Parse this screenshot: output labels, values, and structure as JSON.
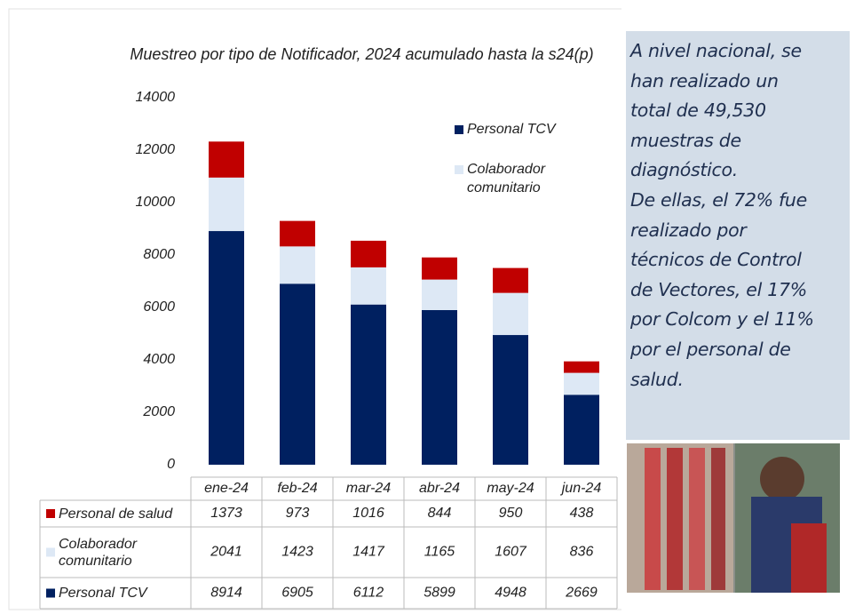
{
  "chart_data": {
    "type": "stacked-bar",
    "title": "Muestreo por tipo de Notificador, 2024 acumulado hasta la s24(p)",
    "categories": [
      "ene-24",
      "feb-24",
      "mar-24",
      "abr-24",
      "may-24",
      "jun-24"
    ],
    "series": [
      {
        "name": "Personal TCV",
        "color": "#002060",
        "values": [
          8914,
          6905,
          6112,
          5899,
          4948,
          2669
        ]
      },
      {
        "name": "Colaborador comunitario",
        "color": "#dde8f5",
        "values": [
          2041,
          1423,
          1417,
          1165,
          1607,
          836
        ]
      },
      {
        "name": "Personal de salud",
        "color": "#c00000",
        "values": [
          1373,
          973,
          1016,
          844,
          950,
          438
        ]
      }
    ],
    "ylim": [
      0,
      14000
    ],
    "yticks": [
      0,
      2000,
      4000,
      6000,
      8000,
      10000,
      12000,
      14000
    ],
    "grid": false
  },
  "text_box": {
    "lines": [
      "A nivel nacional, se",
      "han realizado un",
      "total de 49,530",
      "muestras de",
      "diagnóstico.",
      "De ellas, el 72% fue",
      "realizado por",
      "técnicos de Control",
      "de Vectores, el 17%",
      "por Colcom y el 11%",
      "por el personal de",
      "salud."
    ]
  }
}
